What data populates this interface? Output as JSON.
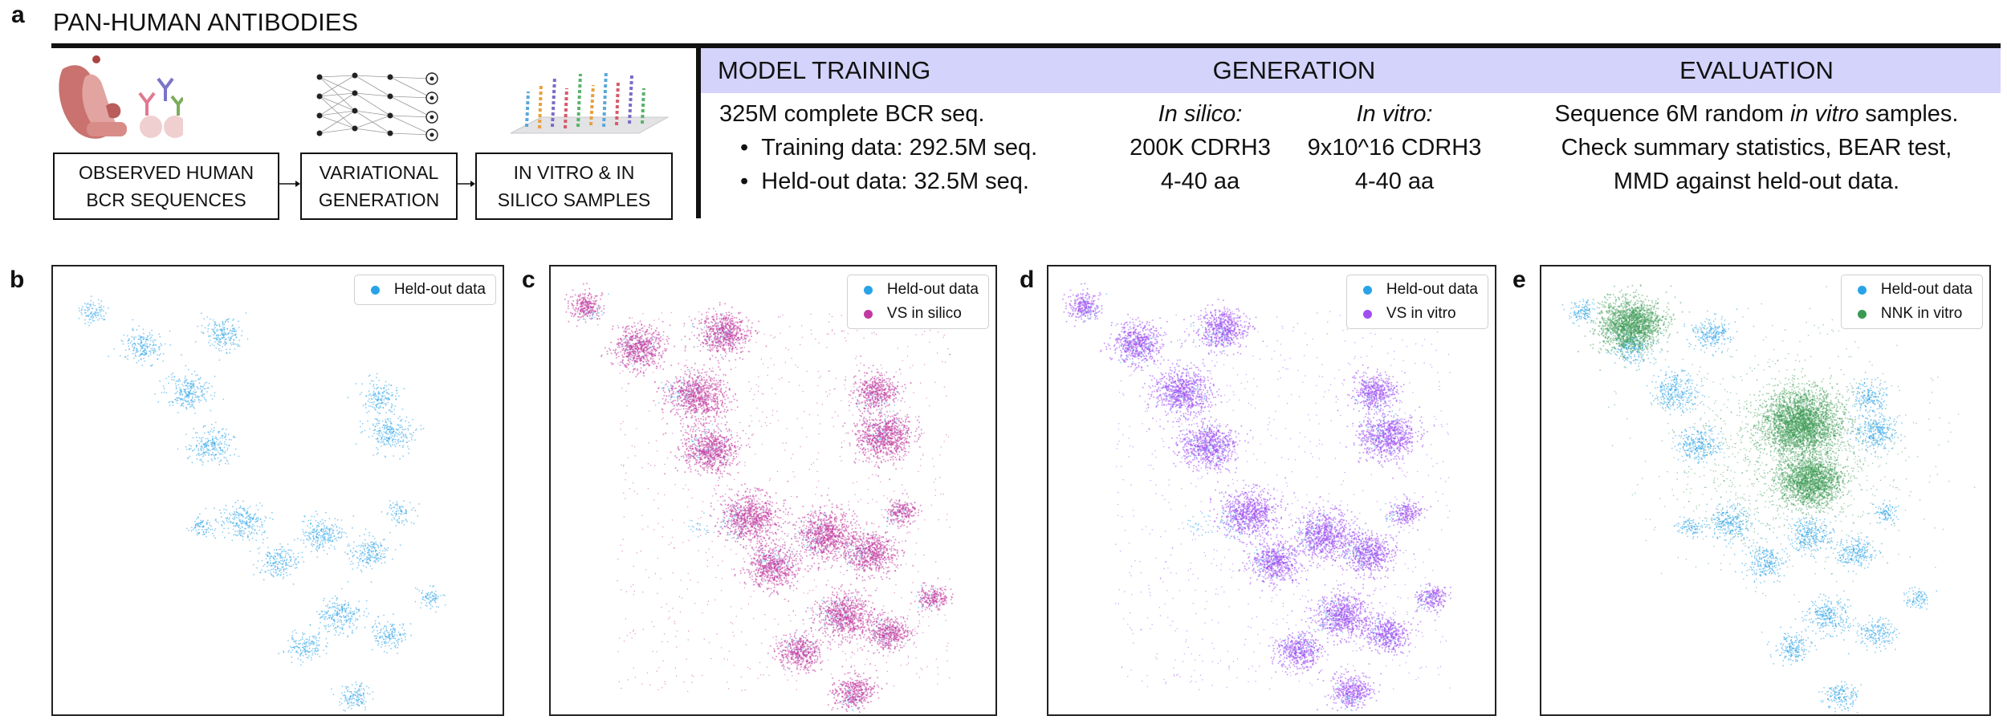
{
  "panel_a": {
    "letter": "a",
    "title": "PAN-HUMAN ANTIBODIES",
    "workflow": {
      "icon_names": [
        "organs-and-antibodies-icon",
        "neural-network-icon",
        "sequence-array-icon"
      ],
      "boxes": [
        {
          "line1": "OBSERVED HUMAN",
          "line2": "BCR SEQUENCES"
        },
        {
          "line1": "VARIATIONAL",
          "line2": "GENERATION"
        },
        {
          "line1": "IN VITRO & IN",
          "line2": "SILICO SAMPLES"
        }
      ]
    },
    "table": {
      "headers": {
        "training": "MODEL TRAINING",
        "generation": "GENERATION",
        "evaluation": "EVALUATION"
      },
      "training": {
        "line1": "325M complete BCR seq.",
        "bullet1": "Training data: 292.5M seq.",
        "bullet2": "Held-out data: 32.5M seq."
      },
      "generation": {
        "silico_label": "In silico:",
        "silico_count": "200K CDRH3",
        "silico_len": "4-40 aa",
        "vitro_label": "In vitro:",
        "vitro_count": "9x10^16 CDRH3",
        "vitro_len": "4-40 aa"
      },
      "evaluation": {
        "line1_pre": "Sequence 6M random ",
        "line1_em": "in vitro",
        "line1_post": " samples.",
        "line2": "Check summary statistics, BEAR test,",
        "line3": "MMD against held-out data."
      }
    }
  },
  "colors": {
    "heldout": "#29a3e8",
    "vs_silico": "#c23a9f",
    "vs_vitro": "#a04ef2",
    "nnk": "#3a9a52",
    "header_bg": "#d4d3fb"
  },
  "scatter_panels": [
    {
      "letter": "b",
      "legend": [
        "Held-out data"
      ]
    },
    {
      "letter": "c",
      "legend": [
        "Held-out data",
        "VS in silico"
      ]
    },
    {
      "letter": "d",
      "legend": [
        "Held-out data",
        "VS in vitro"
      ]
    },
    {
      "letter": "e",
      "legend": [
        "Held-out data",
        "NNK in vitro"
      ]
    }
  ],
  "chart_data": {
    "type": "scatter",
    "title": "",
    "xlabel": "",
    "ylabel": "",
    "note": "UMAP-style embedding without axes; cluster centres in normalized embedding units (0-1), density is relative",
    "series": [
      {
        "name": "Held-out data",
        "clusters": [
          [
            0.09,
            0.1,
            0.5
          ],
          [
            0.2,
            0.18,
            1
          ],
          [
            0.38,
            0.15,
            1
          ],
          [
            0.3,
            0.28,
            1.3
          ],
          [
            0.35,
            0.4,
            1.2
          ],
          [
            0.73,
            0.29,
            0.8
          ],
          [
            0.75,
            0.37,
            1.3
          ],
          [
            0.42,
            0.57,
            1.2
          ],
          [
            0.6,
            0.6,
            1.2
          ],
          [
            0.5,
            0.66,
            1
          ],
          [
            0.7,
            0.64,
            1
          ],
          [
            0.64,
            0.78,
            1.2
          ],
          [
            0.56,
            0.85,
            0.8
          ],
          [
            0.75,
            0.82,
            0.8
          ],
          [
            0.67,
            0.96,
            0.7
          ],
          [
            0.77,
            0.55,
            0.4
          ],
          [
            0.84,
            0.74,
            0.4
          ],
          [
            0.33,
            0.58,
            0.4
          ]
        ]
      },
      {
        "name": "VS in silico",
        "clusters": [
          [
            0.08,
            0.09,
            0.6
          ],
          [
            0.2,
            0.18,
            1.4
          ],
          [
            0.39,
            0.15,
            1.4
          ],
          [
            0.33,
            0.29,
            1.8
          ],
          [
            0.36,
            0.41,
            1.6
          ],
          [
            0.73,
            0.28,
            1
          ],
          [
            0.75,
            0.38,
            1.8
          ],
          [
            0.45,
            0.56,
            1.8
          ],
          [
            0.62,
            0.6,
            1.8
          ],
          [
            0.5,
            0.67,
            1.4
          ],
          [
            0.72,
            0.64,
            1.4
          ],
          [
            0.66,
            0.78,
            1.6
          ],
          [
            0.56,
            0.86,
            1
          ],
          [
            0.76,
            0.82,
            1
          ],
          [
            0.68,
            0.95,
            0.9
          ],
          [
            0.79,
            0.55,
            0.5
          ],
          [
            0.86,
            0.74,
            0.5
          ]
        ]
      },
      {
        "name": "VS in vitro",
        "clusters": [
          [
            0.08,
            0.09,
            0.6
          ],
          [
            0.2,
            0.17,
            1.3
          ],
          [
            0.39,
            0.14,
            1.3
          ],
          [
            0.3,
            0.28,
            1.7
          ],
          [
            0.36,
            0.4,
            1.6
          ],
          [
            0.73,
            0.28,
            1
          ],
          [
            0.76,
            0.38,
            1.7
          ],
          [
            0.45,
            0.55,
            1.7
          ],
          [
            0.62,
            0.6,
            1.7
          ],
          [
            0.51,
            0.66,
            1.3
          ],
          [
            0.72,
            0.64,
            1.3
          ],
          [
            0.66,
            0.78,
            1.6
          ],
          [
            0.56,
            0.86,
            1
          ],
          [
            0.76,
            0.82,
            1
          ],
          [
            0.68,
            0.95,
            0.9
          ],
          [
            0.8,
            0.55,
            0.5
          ],
          [
            0.86,
            0.74,
            0.5
          ]
        ]
      },
      {
        "name": "NNK in vitro",
        "clusters": [
          [
            0.2,
            0.13,
            2.5
          ],
          [
            0.58,
            0.35,
            4
          ],
          [
            0.6,
            0.48,
            2.5
          ]
        ]
      }
    ]
  }
}
